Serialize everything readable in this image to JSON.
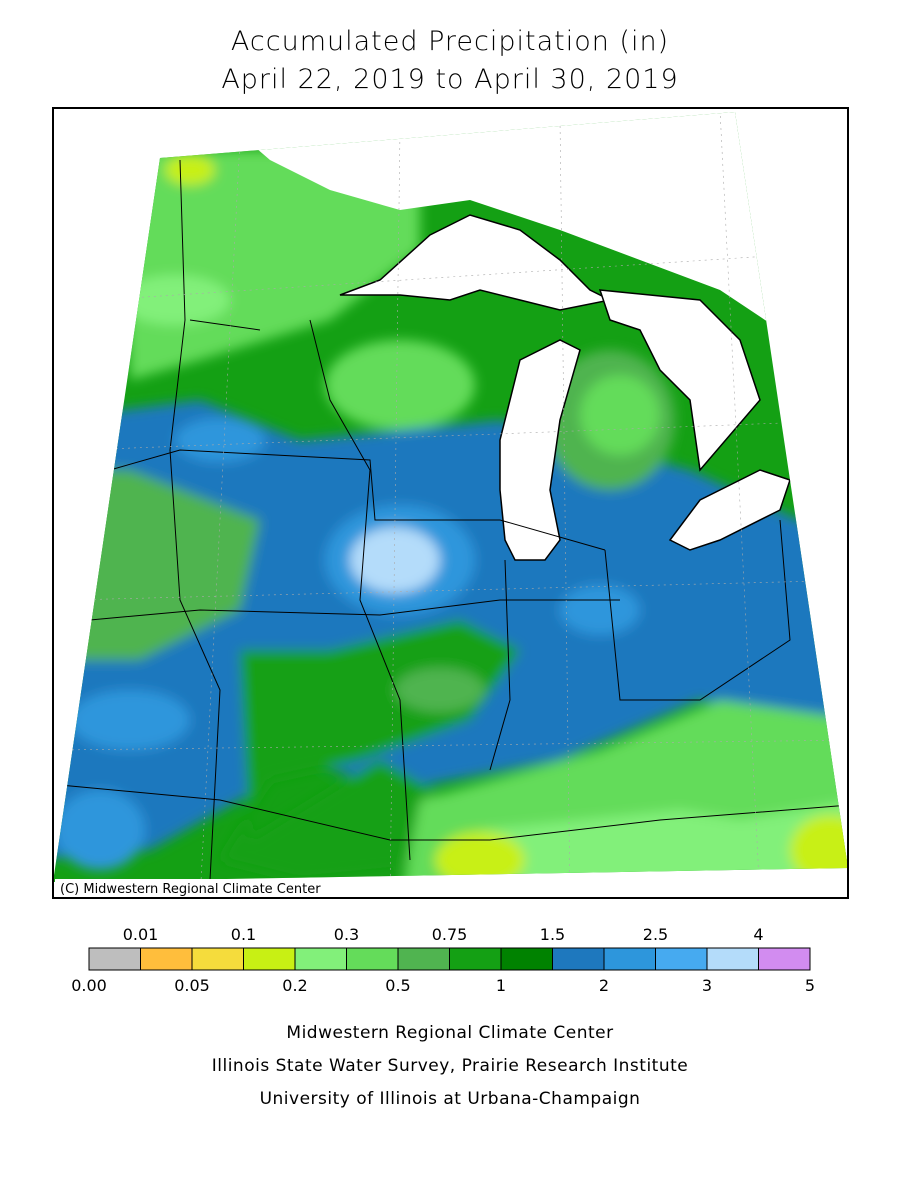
{
  "header": {
    "title": "Accumulated Precipitation (in)",
    "subtitle": "April 22, 2019 to April 30, 2019"
  },
  "map": {
    "credit": "(C) Midwestern Regional Climate Center"
  },
  "legend": {
    "colors": [
      "#bebebe",
      "#ffbe3c",
      "#f5dc3c",
      "#c8f014",
      "#82f07a",
      "#64dc5a",
      "#50b450",
      "#14a014",
      "#008200",
      "#1e78be",
      "#2d96dc",
      "#46aaf0",
      "#b4dcfa",
      "#d28cf0"
    ],
    "top_labels": [
      "0.01",
      "0.1",
      "0.3",
      "0.75",
      "1.5",
      "2.5",
      "4"
    ],
    "bottom_labels": [
      "0.00",
      "0.05",
      "0.2",
      "0.5",
      "1",
      "2",
      "3",
      "5"
    ]
  },
  "footer": {
    "lines": [
      "Midwestern Regional Climate Center",
      "Illinois State Water Survey, Prairie Research Institute",
      "University of Illinois at Urbana-Champaign"
    ]
  }
}
